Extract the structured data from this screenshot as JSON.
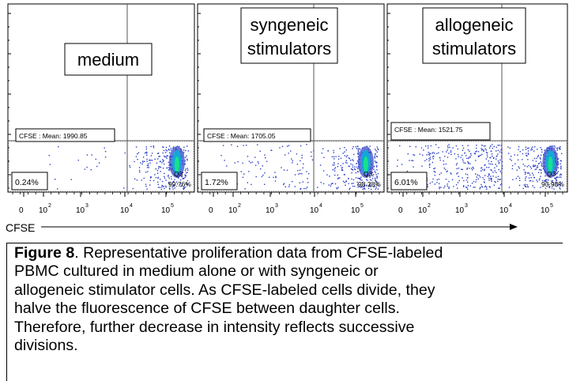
{
  "chart_data": [
    {
      "type": "scatter",
      "title": "medium",
      "x_axis": {
        "label": "CFSE",
        "scale": "log",
        "tick_labels": [
          {
            "base": "0",
            "exp": ""
          },
          {
            "base": "10",
            "exp": "2"
          },
          {
            "base": "10",
            "exp": "3"
          },
          {
            "base": "10",
            "exp": "4"
          },
          {
            "base": "10",
            "exp": "5"
          }
        ]
      },
      "stat_label": "CFSE : Mean: 1990.85",
      "left_gate_label": "0.24%",
      "q3_label": "Q3",
      "q3_value": "99.76%",
      "dividing_fraction": 0.24,
      "undivided_fraction": 99.76,
      "grid": false
    },
    {
      "type": "scatter",
      "title": "syngeneic stimulators",
      "x_axis": {
        "label": "CFSE",
        "scale": "log",
        "tick_labels": [
          {
            "base": "0",
            "exp": ""
          },
          {
            "base": "10",
            "exp": "2"
          },
          {
            "base": "10",
            "exp": "3"
          },
          {
            "base": "10",
            "exp": "4"
          },
          {
            "base": "10",
            "exp": "5"
          }
        ]
      },
      "stat_label": "CFSE : Mean: 1705.05",
      "left_gate_label": "1.72%",
      "q3_label": "Q3",
      "q3_value": "98.28%",
      "dividing_fraction": 1.72,
      "undivided_fraction": 98.28,
      "grid": false
    },
    {
      "type": "scatter",
      "title": "allogeneic stimulators",
      "x_axis": {
        "label": "CFSE",
        "scale": "log",
        "tick_labels": [
          {
            "base": "0",
            "exp": ""
          },
          {
            "base": "10",
            "exp": "2"
          },
          {
            "base": "10",
            "exp": "3"
          },
          {
            "base": "10",
            "exp": "4"
          },
          {
            "base": "10",
            "exp": "5"
          }
        ]
      },
      "stat_label": "CFSE : Mean: 1521.75",
      "left_gate_label": "6.01%",
      "q3_label": "Q3",
      "q3_value": "93.98%",
      "dividing_fraction": 6.01,
      "undivided_fraction": 93.98,
      "grid": false
    }
  ],
  "axis_title": "CFSE",
  "panel_titles": [
    [
      "medium"
    ],
    [
      "syngeneic",
      "stimulators"
    ],
    [
      "allogeneic",
      "stimulators"
    ]
  ],
  "colors": {
    "dots": "#2b3fc8",
    "hot_core": "#19e08a",
    "hot_mid": "#13a7d8",
    "gate_line": "#555555"
  },
  "caption": {
    "label": "Figure 8",
    "lines": [
      ". Representative proliferation data from CFSE-labeled",
      "PBMC cultured in medium alone or with syngeneic or",
      "allogeneic stimulator cells. As CFSE-labeled cells divide, they",
      "halve the fluorescence of CFSE between daughter cells.",
      "Therefore, further decrease in intensity reflects successive",
      "divisions."
    ]
  }
}
